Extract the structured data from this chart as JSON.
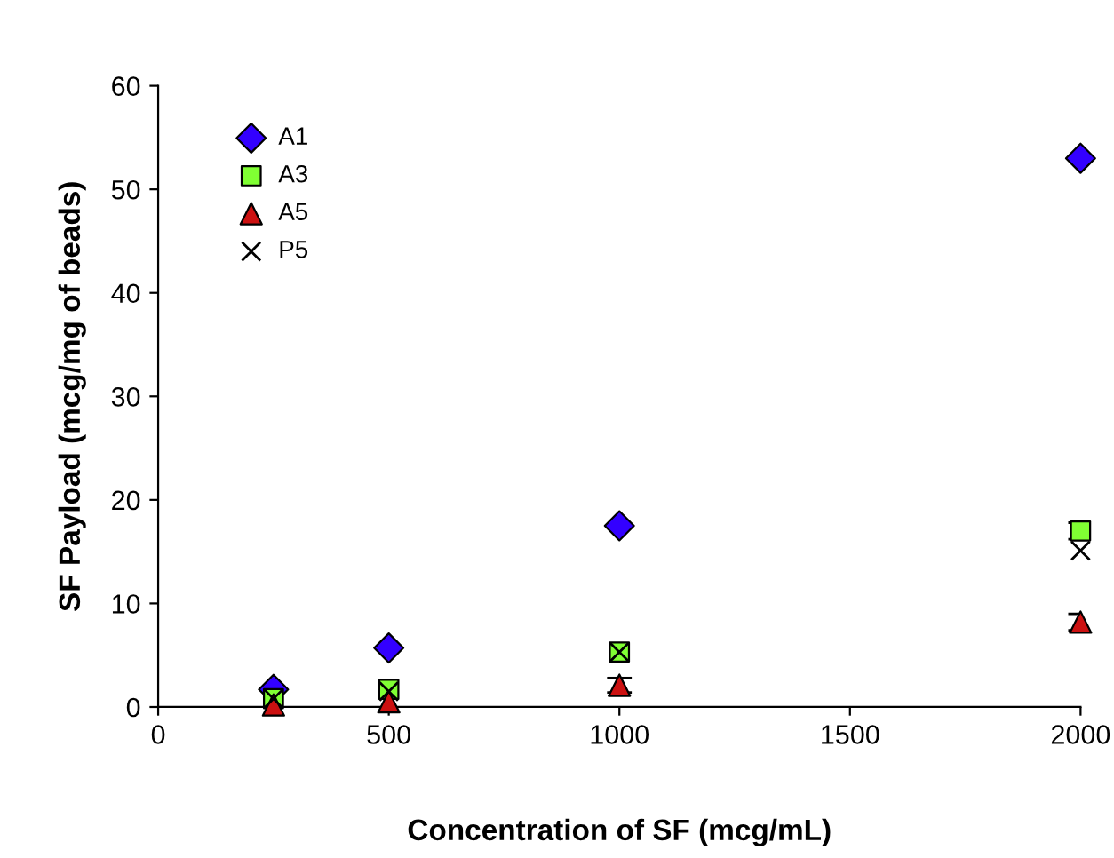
{
  "chart_data": {
    "type": "scatter",
    "xlabel": "Concentration of SF (mcg/mL)",
    "ylabel": "SF Payload (mcg/mg of beads)",
    "x": [
      250,
      500,
      1000,
      2000
    ],
    "series": [
      {
        "name": "A1",
        "color": "#3300ff",
        "marker": "diamond",
        "values": [
          1.7,
          5.7,
          17.5,
          53
        ]
      },
      {
        "name": "A3",
        "color": "#80ff33",
        "marker": "square",
        "values": [
          0.8,
          1.7,
          5.3,
          17
        ],
        "errors": [
          null,
          null,
          null,
          0.8
        ]
      },
      {
        "name": "A5",
        "color": "#cc1111",
        "marker": "triangle",
        "values": [
          0.2,
          0.5,
          2.1,
          8.2
        ],
        "errors": [
          null,
          null,
          0.7,
          0.8
        ]
      },
      {
        "name": "P5",
        "color": "#000000",
        "marker": "cross",
        "values": [
          0.8,
          1.5,
          5.3,
          15.1
        ]
      }
    ],
    "xlim": [
      0,
      2000
    ],
    "ylim": [
      0,
      60
    ],
    "xticks": [
      0,
      500,
      1000,
      1500,
      2000
    ],
    "yticks": [
      0,
      10,
      20,
      30,
      40,
      50,
      60
    ],
    "grid": false,
    "legend": "top left"
  }
}
